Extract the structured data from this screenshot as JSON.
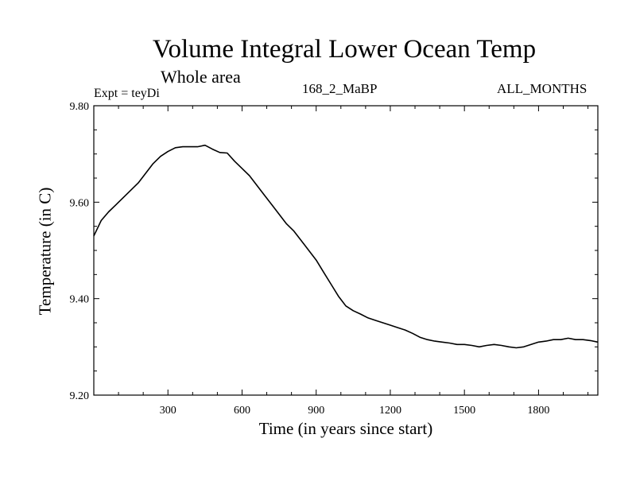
{
  "chart_data": {
    "type": "line",
    "title": "Volume Integral Lower Ocean Temp",
    "subtitle": "Whole area",
    "experiment": "Expt = teyDi",
    "run_label": "168_2_MaBP",
    "months_label": "ALL_MONTHS",
    "xlabel": "Time (in years since start)",
    "ylabel": "Temperature (in C)",
    "xlim": [
      0,
      2040
    ],
    "ylim": [
      9.2,
      9.8
    ],
    "xticks": [
      300,
      600,
      900,
      1200,
      1500,
      1800
    ],
    "xtick_labels": [
      "300",
      "600",
      "900",
      "1200",
      "1500",
      "1800"
    ],
    "yticks": [
      9.2,
      9.4,
      9.6,
      9.8
    ],
    "ytick_labels": [
      "9.20",
      "9.40",
      "9.60",
      "9.80"
    ],
    "grid": false,
    "series": [
      {
        "name": "Temperature",
        "x": [
          0,
          30,
          60,
          90,
          120,
          150,
          180,
          210,
          240,
          270,
          300,
          330,
          360,
          390,
          420,
          450,
          480,
          510,
          540,
          570,
          600,
          630,
          660,
          690,
          720,
          750,
          780,
          810,
          840,
          870,
          900,
          930,
          960,
          990,
          1020,
          1050,
          1080,
          1110,
          1140,
          1170,
          1200,
          1230,
          1260,
          1290,
          1320,
          1350,
          1380,
          1410,
          1440,
          1470,
          1500,
          1530,
          1560,
          1590,
          1620,
          1650,
          1680,
          1710,
          1740,
          1770,
          1800,
          1830,
          1860,
          1890,
          1920,
          1950,
          1980,
          2010,
          2040
        ],
        "y": [
          9.53,
          9.562,
          9.58,
          9.595,
          9.61,
          9.625,
          9.64,
          9.66,
          9.68,
          9.695,
          9.705,
          9.713,
          9.715,
          9.715,
          9.715,
          9.718,
          9.71,
          9.703,
          9.702,
          9.685,
          9.67,
          9.655,
          9.635,
          9.615,
          9.595,
          9.575,
          9.555,
          9.54,
          9.52,
          9.5,
          9.48,
          9.455,
          9.43,
          9.405,
          9.385,
          9.375,
          9.368,
          9.36,
          9.355,
          9.35,
          9.345,
          9.34,
          9.335,
          9.328,
          9.32,
          9.315,
          9.312,
          9.31,
          9.308,
          9.305,
          9.305,
          9.303,
          9.3,
          9.303,
          9.305,
          9.303,
          9.3,
          9.298,
          9.3,
          9.305,
          9.31,
          9.312,
          9.315,
          9.315,
          9.318,
          9.315,
          9.315,
          9.313,
          9.31
        ]
      }
    ]
  }
}
